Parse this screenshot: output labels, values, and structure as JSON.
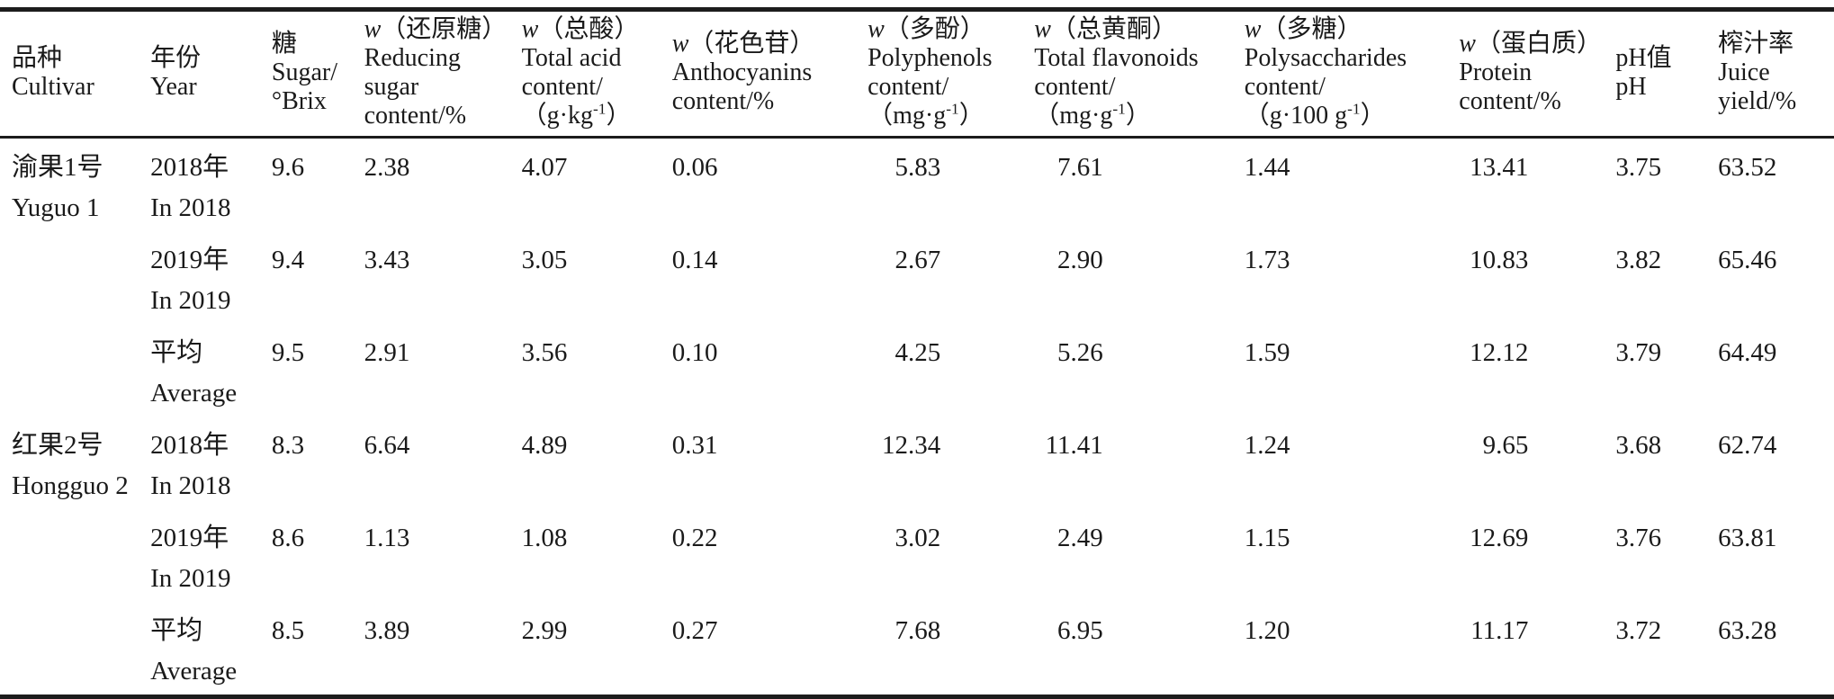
{
  "colors": {
    "text": "#1a1a1a",
    "rule": "#1c1c1c",
    "background": "#ffffff"
  },
  "table": {
    "columns": [
      {
        "id": "cultivar",
        "header_lines": [
          "品种",
          "Cultivar"
        ]
      },
      {
        "id": "year",
        "header_lines": [
          "年份",
          "Year"
        ]
      },
      {
        "id": "sugar",
        "header_lines": [
          "糖",
          "Sugar/",
          "°Brix"
        ]
      },
      {
        "id": "reducing_sugar",
        "header_lines": [
          "*w*（还原糖）",
          "Reducing",
          "sugar",
          "content/%"
        ]
      },
      {
        "id": "total_acid",
        "header_lines": [
          "*w*（总酸）",
          "Total acid",
          "content/",
          "（g·kg^-1^）"
        ]
      },
      {
        "id": "anthocyanins",
        "header_lines": [
          "*w*（花色苷）",
          "Anthocyanins",
          "content/%"
        ]
      },
      {
        "id": "polyphenols",
        "header_lines": [
          "*w*（多酚）",
          "Polyphenols",
          "content/",
          "（mg·g^-1^）"
        ]
      },
      {
        "id": "total_flavonoids",
        "header_lines": [
          "*w*（总黄酮）",
          "Total flavonoids",
          "content/",
          "（mg·g^-1^）"
        ]
      },
      {
        "id": "polysaccharides",
        "header_lines": [
          "*w*（多糖）",
          "Polysaccharides",
          "content/",
          "（g·100 g^-1^）"
        ]
      },
      {
        "id": "protein",
        "header_lines": [
          "*w*（蛋白质）",
          "Protein",
          "content/%"
        ]
      },
      {
        "id": "ph",
        "header_lines": [
          "pH值",
          "pH"
        ]
      },
      {
        "id": "juice_yield",
        "header_lines": [
          "榨汁率",
          "Juice",
          "yield/%"
        ]
      }
    ],
    "rows": [
      {
        "cultivar_lines": [
          "渝果1号",
          "Yuguo 1"
        ],
        "year_lines": [
          "2018年",
          "In 2018"
        ],
        "values": [
          "9.6",
          "2.38",
          "4.07",
          "0.06",
          "5.83",
          "7.61",
          "1.44",
          "13.41",
          "3.75",
          "63.52"
        ]
      },
      {
        "cultivar_lines": null,
        "year_lines": [
          "2019年",
          "In 2019"
        ],
        "values": [
          "9.4",
          "3.43",
          "3.05",
          "0.14",
          "2.67",
          "2.90",
          "1.73",
          "10.83",
          "3.82",
          "65.46"
        ]
      },
      {
        "cultivar_lines": null,
        "year_lines": [
          "平均",
          "Average"
        ],
        "values": [
          "9.5",
          "2.91",
          "3.56",
          "0.10",
          "4.25",
          "5.26",
          "1.59",
          "12.12",
          "3.79",
          "64.49"
        ]
      },
      {
        "cultivar_lines": [
          "红果2号",
          "Hongguo 2"
        ],
        "year_lines": [
          "2018年",
          "In 2018"
        ],
        "values": [
          "8.3",
          "6.64",
          "4.89",
          "0.31",
          "12.34",
          "11.41",
          "1.24",
          "9.65",
          "3.68",
          "62.74"
        ]
      },
      {
        "cultivar_lines": null,
        "year_lines": [
          "2019年",
          "In 2019"
        ],
        "values": [
          "8.6",
          "1.13",
          "1.08",
          "0.22",
          "3.02",
          "2.49",
          "1.15",
          "12.69",
          "3.76",
          "63.81"
        ]
      },
      {
        "cultivar_lines": null,
        "year_lines": [
          "平均",
          "Average"
        ],
        "values": [
          "8.5",
          "3.89",
          "2.99",
          "0.27",
          "7.68",
          "6.95",
          "1.20",
          "11.17",
          "3.72",
          "63.28"
        ]
      }
    ]
  }
}
